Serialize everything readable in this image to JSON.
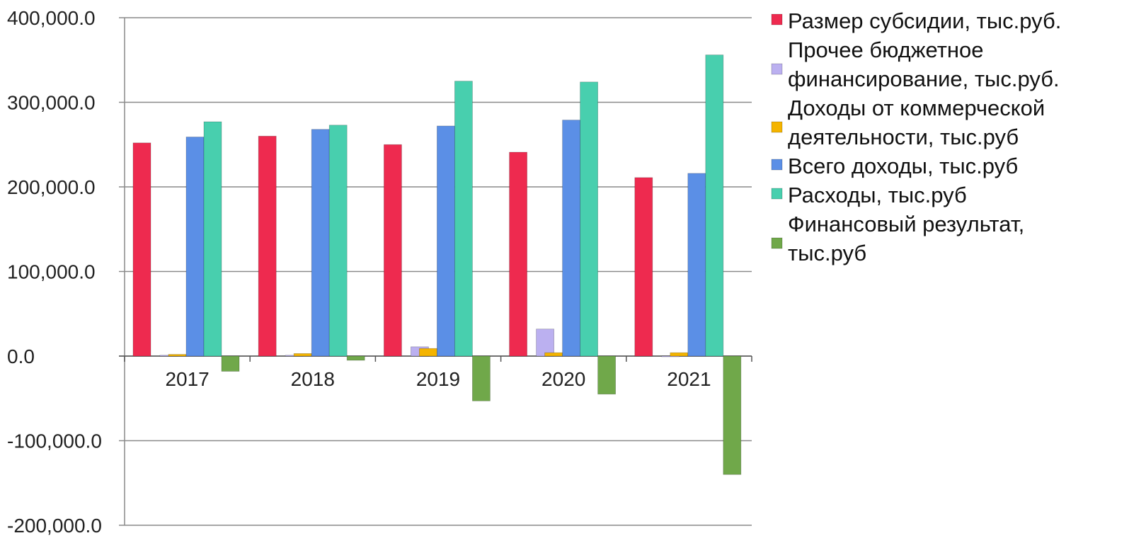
{
  "chart_data": {
    "type": "bar",
    "title": "",
    "xlabel": "",
    "ylabel": "",
    "ylim": [
      -200000,
      400000
    ],
    "yticks": [
      -200000,
      -100000,
      0,
      100000,
      200000,
      300000,
      400000
    ],
    "ytick_labels": [
      "-200,000.0",
      "-100,000.0",
      "0.0",
      "100,000.0",
      "200,000.0",
      "300,000.0",
      "400,000.0"
    ],
    "grid": true,
    "legend_position": "right",
    "categories": [
      "2017",
      "2018",
      "2019",
      "2020",
      "2021"
    ],
    "series": [
      {
        "name": "Размер субсидии, тыс.руб.",
        "legend_lines": [
          "Размер субсидии, тыс.руб."
        ],
        "color": "#EE2A4F",
        "values": [
          252000,
          260000,
          250000,
          241000,
          211000
        ]
      },
      {
        "name": "Прочее бюджетное финансирование, тыс.руб.",
        "legend_lines": [
          "Прочее бюджетное",
          "финансирование, тыс.руб."
        ],
        "color": "#BBB0F0",
        "values": [
          1000,
          1000,
          11000,
          32000,
          0
        ]
      },
      {
        "name": "Доходы от коммерческой деятельности, тыс.руб",
        "legend_lines": [
          "Доходы от коммерческой",
          "деятельности, тыс.руб"
        ],
        "color": "#F4B400",
        "values": [
          2000,
          3000,
          9000,
          4000,
          4000
        ]
      },
      {
        "name": "Всего доходы, тыс.руб",
        "legend_lines": [
          "Всего доходы, тыс.руб"
        ],
        "color": "#5B8FE6",
        "values": [
          259000,
          268000,
          272000,
          279000,
          216000
        ]
      },
      {
        "name": "Расходы, тыс.руб",
        "legend_lines": [
          "Расходы, тыс.руб"
        ],
        "color": "#48CFAE",
        "values": [
          277000,
          273000,
          325000,
          324000,
          356000
        ]
      },
      {
        "name": "Финансовый результат, тыс.руб",
        "legend_lines": [
          "Финансовый результат,",
          "тыс.руб"
        ],
        "color": "#70A84A",
        "values": [
          -18000,
          -5000,
          -53000,
          -45000,
          -140000
        ]
      }
    ]
  }
}
